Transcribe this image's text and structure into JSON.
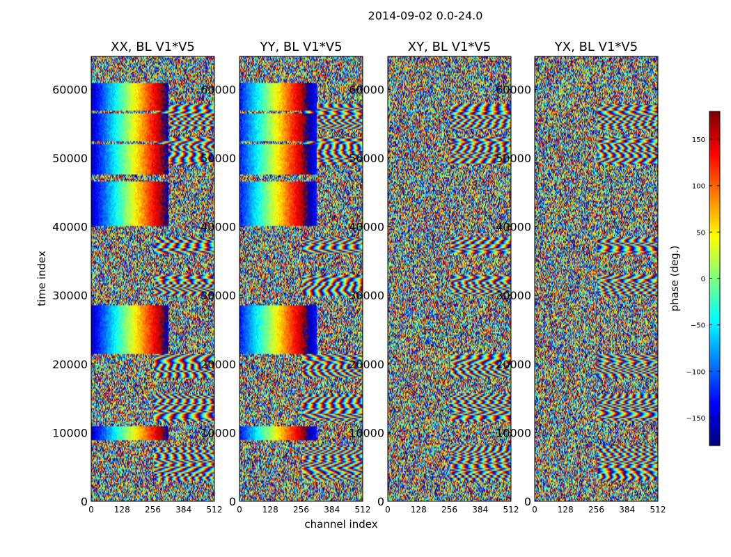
{
  "figure": {
    "suptitle": "2014-09-02 0.0-24.0",
    "xlabel": "channel index",
    "ylabel": "time index"
  },
  "colormap": "jet",
  "colorbar": {
    "label": "phase (deg.)",
    "range": [
      -180,
      180
    ],
    "ticks": [
      -150,
      -100,
      -50,
      0,
      50,
      100,
      150
    ],
    "tick_labels": [
      "−150",
      "−100",
      "−50",
      "0",
      "50",
      "100",
      "150"
    ]
  },
  "chart_data": [
    {
      "type": "heatmap",
      "title": "XX, BL V1*V5",
      "xlabel": "channel index",
      "ylabel": "time index",
      "xlim": [
        0,
        512
      ],
      "ylim": [
        0,
        64800
      ],
      "xticks": [
        0,
        128,
        256,
        384,
        512
      ],
      "yticks": [
        0,
        10000,
        20000,
        30000,
        40000,
        50000,
        60000
      ],
      "value": "phase (deg.)",
      "value_range": [
        -180,
        180
      ],
      "note": "phase-wrapped fringes; strong coherent phase ramp across channels 0-320 in several time bands"
    },
    {
      "type": "heatmap",
      "title": "YY, BL V1*V5",
      "xlabel": "channel index",
      "ylabel": "time index",
      "xlim": [
        0,
        512
      ],
      "ylim": [
        0,
        64800
      ],
      "xticks": [
        0,
        128,
        256,
        384,
        512
      ],
      "yticks": [
        0,
        10000,
        20000,
        30000,
        40000,
        50000,
        60000
      ],
      "value": "phase (deg.)",
      "value_range": [
        -180,
        180
      ]
    },
    {
      "type": "heatmap",
      "title": "XY, BL V1*V5",
      "xlabel": "channel index",
      "ylabel": "time index",
      "xlim": [
        0,
        512
      ],
      "ylim": [
        0,
        64800
      ],
      "xticks": [
        0,
        128,
        256,
        384,
        512
      ],
      "yticks": [
        0,
        10000,
        20000,
        30000,
        40000,
        50000,
        60000
      ],
      "value": "phase (deg.)",
      "value_range": [
        -180,
        180
      ]
    },
    {
      "type": "heatmap",
      "title": "YX, BL V1*V5",
      "xlabel": "channel index",
      "ylabel": "time index",
      "xlim": [
        0,
        512
      ],
      "ylim": [
        0,
        64800
      ],
      "xticks": [
        0,
        128,
        256,
        384,
        512
      ],
      "yticks": [
        0,
        10000,
        20000,
        30000,
        40000,
        50000,
        60000
      ],
      "value": "phase (deg.)",
      "value_range": [
        -180,
        180
      ]
    }
  ]
}
